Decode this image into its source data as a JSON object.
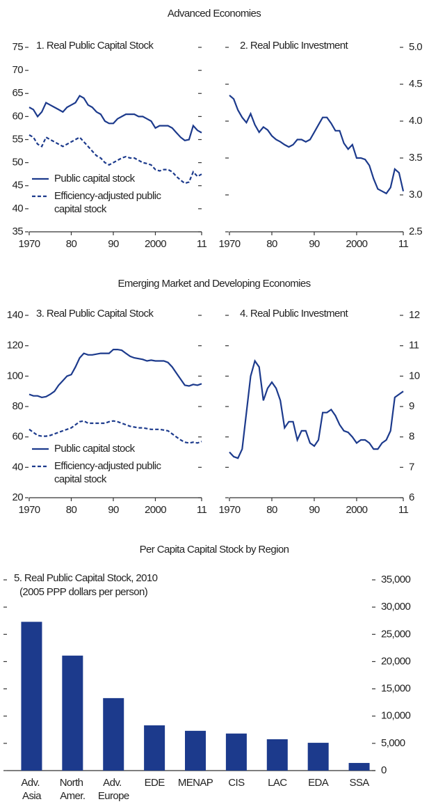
{
  "headings": [
    "Advanced Economies",
    "Emerging Market and Developing Economies",
    "Per Capita Capital Stock by Region"
  ],
  "chart_data": [
    {
      "type": "line",
      "title": "1. Real Public Capital Stock",
      "x": [
        1970,
        1971,
        1972,
        1973,
        1974,
        1975,
        1976,
        1977,
        1978,
        1979,
        1980,
        1981,
        1982,
        1983,
        1984,
        1985,
        1986,
        1987,
        1988,
        1989,
        1990,
        1991,
        1992,
        1993,
        1994,
        1995,
        1996,
        1997,
        1998,
        1999,
        2000,
        2001,
        2002,
        2003,
        2004,
        2005,
        2006,
        2007,
        2008,
        2009,
        2010,
        2011
      ],
      "xlim": [
        1970,
        2011
      ],
      "xticks": [
        1970,
        {
          "value": 1980,
          "label": "80"
        },
        {
          "value": 1990,
          "label": "90"
        },
        2000,
        {
          "value": 2011,
          "label": "11"
        }
      ],
      "ylim": [
        35,
        75
      ],
      "yticks": [
        35,
        40,
        45,
        50,
        55,
        60,
        65,
        70,
        75
      ],
      "series": [
        {
          "name": "Public capital stock",
          "color": "#1c3a8c",
          "style": "solid",
          "values": [
            62,
            61.5,
            60,
            61,
            63,
            62.5,
            62,
            61.5,
            61,
            62,
            62.5,
            63,
            64.5,
            64,
            62.5,
            62,
            61,
            60.5,
            59,
            58.5,
            58.5,
            59.5,
            60,
            60.5,
            60.5,
            60.5,
            60,
            60,
            59.5,
            59,
            57.5,
            58,
            58,
            58,
            57.5,
            56.5,
            55.5,
            54.8,
            55,
            58,
            57,
            56.5
          ]
        },
        {
          "name": "Efficiency-adjusted public capital stock",
          "color": "#1c3a8c",
          "style": "dashed",
          "values": [
            56,
            55.5,
            54,
            53.5,
            55.5,
            55,
            54.5,
            54,
            53.5,
            54,
            54.5,
            55,
            55.5,
            54.5,
            53.5,
            52.5,
            51.5,
            51,
            50,
            49.5,
            50,
            50.5,
            51,
            51.3,
            51,
            51,
            50.5,
            50,
            49.8,
            49.5,
            48.5,
            48.2,
            48.5,
            48.5,
            48,
            47,
            46.2,
            45.5,
            45.8,
            48,
            47,
            47.5
          ]
        }
      ]
    },
    {
      "type": "line",
      "title": "2. Real Public Investment",
      "x": [
        1970,
        1971,
        1972,
        1973,
        1974,
        1975,
        1976,
        1977,
        1978,
        1979,
        1980,
        1981,
        1982,
        1983,
        1984,
        1985,
        1986,
        1987,
        1988,
        1989,
        1990,
        1991,
        1992,
        1993,
        1994,
        1995,
        1996,
        1997,
        1998,
        1999,
        2000,
        2001,
        2002,
        2003,
        2004,
        2005,
        2006,
        2007,
        2008,
        2009,
        2010,
        2011
      ],
      "xlim": [
        1970,
        2011
      ],
      "xticks": [
        1970,
        {
          "value": 1980,
          "label": "80"
        },
        {
          "value": 1990,
          "label": "90"
        },
        2000,
        {
          "value": 2011,
          "label": "11"
        }
      ],
      "ylim": [
        2.5,
        5.0
      ],
      "yticks": [
        2.5,
        {
          "value": 3,
          "label": "3.0"
        },
        3.5,
        {
          "value": 4,
          "label": "4.0"
        },
        4.5,
        {
          "value": 5,
          "label": "5.0"
        }
      ],
      "color": "#1c3a8c",
      "values": [
        4.35,
        4.3,
        4.15,
        4.05,
        3.98,
        4.1,
        3.95,
        3.85,
        3.92,
        3.88,
        3.8,
        3.75,
        3.72,
        3.68,
        3.65,
        3.68,
        3.75,
        3.75,
        3.72,
        3.75,
        3.85,
        3.95,
        4.05,
        4.05,
        3.97,
        3.87,
        3.87,
        3.7,
        3.62,
        3.68,
        3.5,
        3.5,
        3.48,
        3.4,
        3.22,
        3.08,
        3.05,
        3.02,
        3.1,
        3.35,
        3.3,
        3.05
      ]
    },
    {
      "type": "line",
      "title": "3. Real Public Capital Stock",
      "x": [
        1970,
        1971,
        1972,
        1973,
        1974,
        1975,
        1976,
        1977,
        1978,
        1979,
        1980,
        1981,
        1982,
        1983,
        1984,
        1985,
        1986,
        1987,
        1988,
        1989,
        1990,
        1991,
        1992,
        1993,
        1994,
        1995,
        1996,
        1997,
        1998,
        1999,
        2000,
        2001,
        2002,
        2003,
        2004,
        2005,
        2006,
        2007,
        2008,
        2009,
        2010,
        2011
      ],
      "xlim": [
        1970,
        2011
      ],
      "xticks": [
        1970,
        {
          "value": 1980,
          "label": "80"
        },
        {
          "value": 1990,
          "label": "90"
        },
        2000,
        {
          "value": 2011,
          "label": "11"
        }
      ],
      "ylim": [
        20,
        140
      ],
      "yticks": [
        20,
        40,
        60,
        80,
        100,
        120,
        140
      ],
      "series": [
        {
          "name": "Public capital stock",
          "color": "#1c3a8c",
          "style": "solid",
          "values": [
            88,
            87,
            87,
            86,
            86.5,
            88,
            90,
            94,
            97,
            100,
            101,
            106,
            112,
            115,
            114,
            114,
            114.5,
            115,
            115,
            115,
            117.5,
            117.5,
            117,
            115,
            113,
            112,
            111.5,
            111,
            110,
            110.5,
            110,
            110,
            110,
            109,
            106,
            102,
            98,
            94,
            93.5,
            94.5,
            94,
            95
          ]
        },
        {
          "name": "Efficiency-adjusted public capital stock",
          "color": "#1c3a8c",
          "style": "dashed",
          "values": [
            65,
            63,
            61,
            60.5,
            60.5,
            61,
            62,
            63,
            64,
            65,
            66,
            68,
            70,
            70.5,
            69,
            69,
            69,
            69,
            69,
            70,
            70.5,
            70,
            69,
            68,
            67,
            66.5,
            66,
            66,
            65.5,
            65,
            65,
            65,
            64.5,
            64,
            62,
            60,
            58,
            56.5,
            56,
            56.5,
            56,
            57
          ]
        }
      ]
    },
    {
      "type": "line",
      "title": "4. Real Public Investment",
      "x": [
        1970,
        1971,
        1972,
        1973,
        1974,
        1975,
        1976,
        1977,
        1978,
        1979,
        1980,
        1981,
        1982,
        1983,
        1984,
        1985,
        1986,
        1987,
        1988,
        1989,
        1990,
        1991,
        1992,
        1993,
        1994,
        1995,
        1996,
        1997,
        1998,
        1999,
        2000,
        2001,
        2002,
        2003,
        2004,
        2005,
        2006,
        2007,
        2008,
        2009,
        2010,
        2011
      ],
      "xlim": [
        1970,
        2011
      ],
      "xticks": [
        1970,
        {
          "value": 1980,
          "label": "80"
        },
        {
          "value": 1990,
          "label": "90"
        },
        2000,
        {
          "value": 2011,
          "label": "11"
        }
      ],
      "ylim": [
        6,
        12
      ],
      "yticks": [
        6,
        7,
        8,
        9,
        10,
        11,
        12
      ],
      "color": "#1c3a8c",
      "values": [
        7.5,
        7.35,
        7.3,
        7.6,
        8.8,
        10,
        10.5,
        10.3,
        9.2,
        9.6,
        9.8,
        9.6,
        9.2,
        8.3,
        8.5,
        8.5,
        7.9,
        8.2,
        8.2,
        7.8,
        7.7,
        7.9,
        8.8,
        8.8,
        8.9,
        8.7,
        8.4,
        8.2,
        8.15,
        8,
        7.8,
        7.9,
        7.9,
        7.8,
        7.6,
        7.6,
        7.8,
        7.9,
        8.2,
        9.3,
        9.4,
        9.5
      ]
    },
    {
      "type": "bar",
      "title": "5. Real Public Capital Stock, 2010",
      "subtitle": "(2005 PPP dollars per person)",
      "categories": [
        "Adv. Asia",
        "North Amer.",
        "Adv. Europe",
        "EDE",
        "MENAP",
        "CIS",
        "LAC",
        "EDA",
        "SSA"
      ],
      "values": [
        27300,
        21100,
        13300,
        8300,
        7300,
        6800,
        5750,
        5100,
        1400
      ],
      "color": "#1c3a8c",
      "ylim": [
        0,
        35000
      ],
      "yticks": [
        0,
        {
          "value": 5000,
          "label": "5,000"
        },
        {
          "value": 10000,
          "label": "10,000"
        },
        {
          "value": 15000,
          "label": "15,000"
        },
        {
          "value": 20000,
          "label": "20,000"
        },
        {
          "value": 25000,
          "label": "25,000"
        },
        {
          "value": 30000,
          "label": "30,000"
        },
        {
          "value": 35000,
          "label": "35,000"
        }
      ]
    }
  ]
}
